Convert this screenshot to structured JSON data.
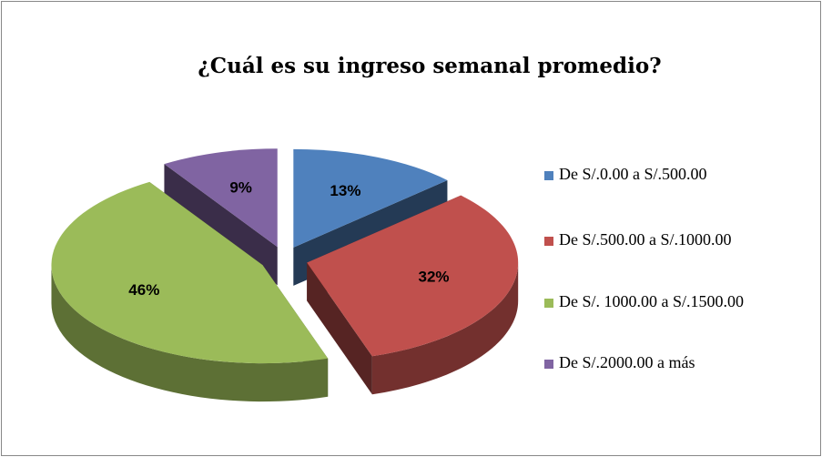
{
  "chart_data": {
    "type": "pie",
    "title": "¿Cuál es su ingreso semanal promedio?",
    "categories": [
      "De S/.0.00 a S/.500.00",
      "De S/.500.00 a S/.1000.00",
      "De S/. 1000.00 a S/.1500.00",
      "De S/.2000.00 a más"
    ],
    "values": [
      13,
      32,
      46,
      9
    ],
    "value_labels": [
      "13%",
      "32%",
      "46%",
      "9%"
    ],
    "colors": [
      "#4f81bd",
      "#c0504d",
      "#9bbb59",
      "#8064a2"
    ],
    "legend": "right"
  }
}
